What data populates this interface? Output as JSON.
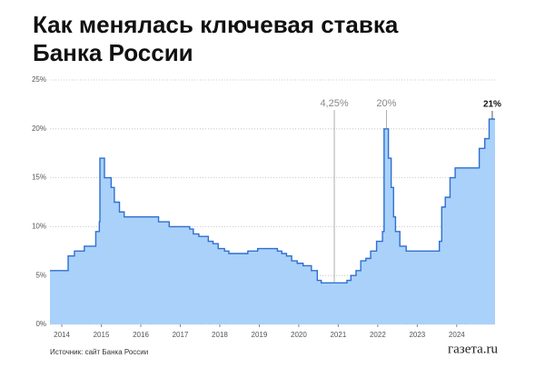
{
  "chart_data": {
    "type": "area",
    "step": true,
    "title": [
      "Как менялась ключевая ставка",
      "Банка России"
    ],
    "source": "Источник: сайт Банка России",
    "logo": "газета.ru",
    "color": "#2f6fd0",
    "fill": "#a9d1fa",
    "grid": true,
    "xlim": [
      2013.7,
      2024.97
    ],
    "xticks": [
      2014,
      2015,
      2016,
      2017,
      2018,
      2019,
      2020,
      2021,
      2022,
      2023,
      2024
    ],
    "ylim": [
      0,
      25
    ],
    "yticks": [
      {
        "value": 0,
        "label": "0%"
      },
      {
        "value": 5,
        "label": "5%"
      },
      {
        "value": 10,
        "label": "10%"
      },
      {
        "value": 15,
        "label": "15%"
      },
      {
        "value": 20,
        "label": "20%"
      },
      {
        "value": 25,
        "label": "25%"
      }
    ],
    "x": [
      2013.7,
      2014.16,
      2014.32,
      2014.57,
      2014.86,
      2014.95,
      2014.965,
      2015.08,
      2015.25,
      2015.33,
      2015.46,
      2015.58,
      2016.45,
      2016.72,
      2017.24,
      2017.33,
      2017.47,
      2017.71,
      2017.83,
      2017.96,
      2018.12,
      2018.23,
      2018.71,
      2018.96,
      2019.46,
      2019.57,
      2019.69,
      2019.82,
      2019.96,
      2020.11,
      2020.32,
      2020.47,
      2020.57,
      2021.22,
      2021.32,
      2021.45,
      2021.57,
      2021.7,
      2021.82,
      2021.97,
      2022.12,
      2022.16,
      2022.27,
      2022.34,
      2022.4,
      2022.45,
      2022.56,
      2022.72,
      2023.56,
      2023.62,
      2023.71,
      2023.83,
      2023.96,
      2024.57,
      2024.71,
      2024.82,
      2024.97
    ],
    "values": [
      5.5,
      7,
      7.5,
      8,
      9.5,
      10.5,
      17,
      15,
      14,
      12.5,
      11.5,
      11,
      10.5,
      10,
      9.75,
      9.25,
      9,
      8.5,
      8.25,
      7.75,
      7.5,
      7.25,
      7.5,
      7.75,
      7.5,
      7.25,
      7,
      6.5,
      6.25,
      6,
      5.5,
      4.5,
      4.25,
      4.5,
      5,
      5.5,
      6.5,
      6.75,
      7.5,
      8.5,
      9.5,
      20,
      17,
      14,
      11,
      9.5,
      8,
      7.5,
      8.5,
      12,
      13,
      15,
      16,
      18,
      19,
      21,
      21
    ],
    "annotations": [
      {
        "text": "4,25%",
        "x": 2020.9,
        "y": 4.25
      },
      {
        "text": "20%",
        "x": 2022.22,
        "y": 20
      },
      {
        "text": "21%",
        "x": 2024.9,
        "y": 21
      }
    ]
  }
}
